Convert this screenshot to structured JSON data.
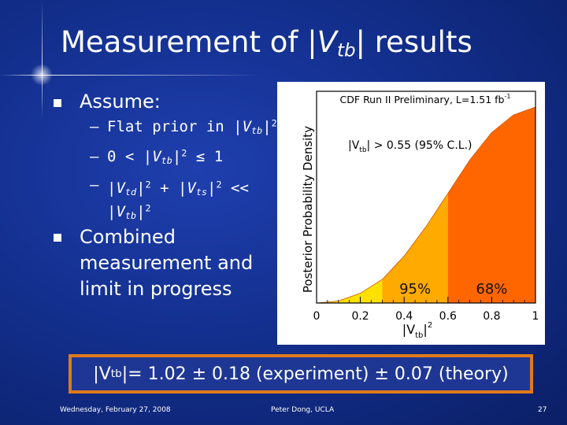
{
  "slide": {
    "title_pre": "Measurement of |",
    "title_var": "V",
    "title_sub": "tb",
    "title_post": "| results",
    "bullets": [
      {
        "text": "Assume:"
      },
      {
        "text": "Combined measurement and limit in progress"
      }
    ],
    "sub_bullets": [
      {
        "dash": "–",
        "pre": "Flat prior in |",
        "var": "V",
        "sub": "tb",
        "post": "|",
        "sup": "2"
      },
      {
        "dash": "–",
        "pre": "0 < |",
        "var": "V",
        "sub": "tb",
        "post": "|",
        "sup": "2",
        "post2": " ≤ 1"
      },
      {
        "dash": "–",
        "pre": "|",
        "var1": "V",
        "sub1": "td",
        "mid1": "|",
        "sup1": "2",
        "mid2": " + |",
        "var2": "V",
        "sub2": "ts",
        "mid3": "|",
        "sup2": "2",
        "mid4": " << |",
        "var3": "V",
        "sub3": "tb",
        "end": "|",
        "sup3": "2"
      }
    ],
    "result": {
      "pre": "|V",
      "sub": "tb",
      "post": "|= 1.02 ± 0.18 (experiment) ± 0.07 (theory)"
    },
    "footer": {
      "date": "Wednesday, February 27, 2008",
      "author": "Peter Dong, UCLA",
      "page": "27"
    }
  },
  "chart_data": {
    "type": "area",
    "title": "CDF Run II Preliminary, L=1.51 fb",
    "title_sup": "-1",
    "annotation": {
      "pre": "|V",
      "sub": "tb",
      "post": "| > 0.55 (95% C.L.)"
    },
    "xlabel": {
      "pre": "|V",
      "sub": "tb",
      "post": "|",
      "sup": "2"
    },
    "ylabel": "Posterior Probability Density",
    "xlim": [
      0,
      1
    ],
    "x_ticks": [
      "0",
      "0.2",
      "0.4",
      "0.6",
      "0.8",
      "1"
    ],
    "x_tick_values": [
      0,
      0.2,
      0.4,
      0.6,
      0.8,
      1
    ],
    "curve": {
      "x": [
        0,
        0.1,
        0.2,
        0.3,
        0.4,
        0.5,
        0.6,
        0.7,
        0.8,
        0.9,
        1.0
      ],
      "y": [
        0,
        0.01,
        0.05,
        0.12,
        0.24,
        0.39,
        0.56,
        0.73,
        0.87,
        0.96,
        1.0
      ]
    },
    "regions": [
      {
        "from": 0.0,
        "to": 0.3,
        "color": "#ffe100",
        "label": ""
      },
      {
        "from": 0.3,
        "to": 0.6,
        "color": "#ffaa00",
        "label": "95%"
      },
      {
        "from": 0.6,
        "to": 1.0,
        "color": "#ff6600",
        "label": "68%"
      }
    ],
    "grid": false,
    "legend": "none"
  }
}
